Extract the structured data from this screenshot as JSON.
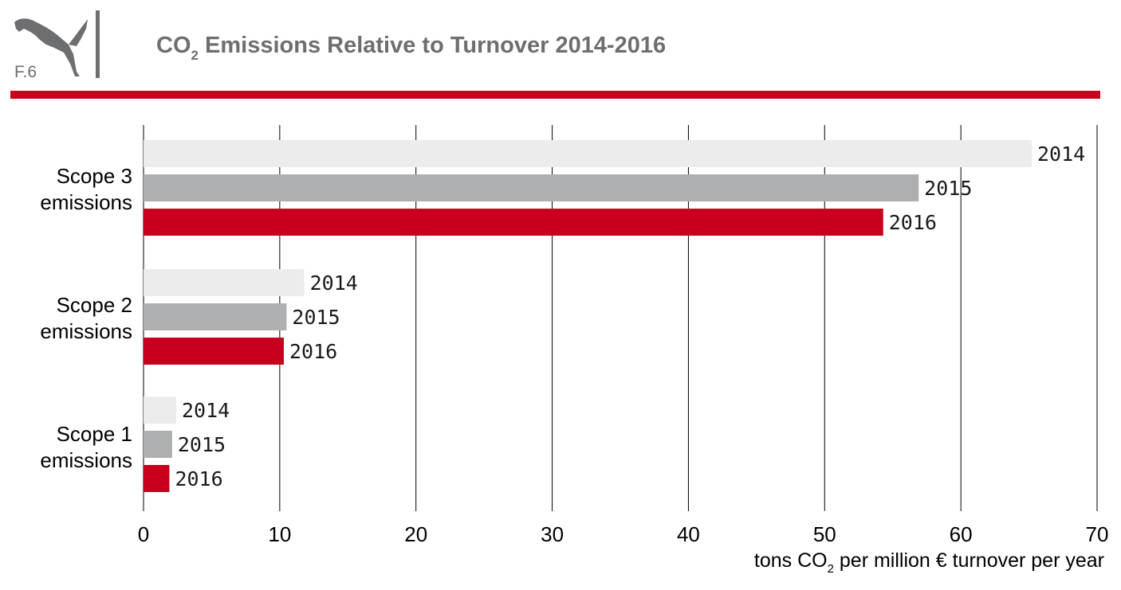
{
  "header": {
    "figure_label": "F.6",
    "logo_name": "puma-logo",
    "title_main": "CO",
    "title_sub": "2",
    "title_rest": " Emissions Relative to Turnover 2014-2016"
  },
  "colors": {
    "accent_red": "#c8001e",
    "title_gray": "#6d6e70",
    "grid": "#000000",
    "series_2014": "#ececec",
    "series_2015": "#adafb0",
    "series_2016": "#c8001e"
  },
  "chart_data": {
    "type": "bar",
    "orientation": "horizontal",
    "title": "CO2 Emissions Relative to Turnover 2014-2016",
    "categories": [
      {
        "line1": "Scope 3",
        "line2": "emissions"
      },
      {
        "line1": "Scope 2",
        "line2": "emissions"
      },
      {
        "line1": "Scope 1",
        "line2": "emissions"
      }
    ],
    "series": [
      {
        "name": "2014",
        "color": "#ececec",
        "values": [
          65.2,
          11.8,
          2.4
        ]
      },
      {
        "name": "2015",
        "color": "#adafb0",
        "values": [
          56.9,
          10.5,
          2.1
        ]
      },
      {
        "name": "2016",
        "color": "#c8001e",
        "values": [
          54.3,
          10.3,
          1.9
        ]
      }
    ],
    "xlabel_main": "tons CO",
    "xlabel_sub": "2",
    "xlabel_rest": " per million € turnover per year",
    "xlim": [
      0,
      70
    ],
    "xticks": [
      0,
      10,
      20,
      30,
      40,
      50,
      60,
      70
    ],
    "grid": "vertical",
    "data_labels": "series name at bar end"
  }
}
